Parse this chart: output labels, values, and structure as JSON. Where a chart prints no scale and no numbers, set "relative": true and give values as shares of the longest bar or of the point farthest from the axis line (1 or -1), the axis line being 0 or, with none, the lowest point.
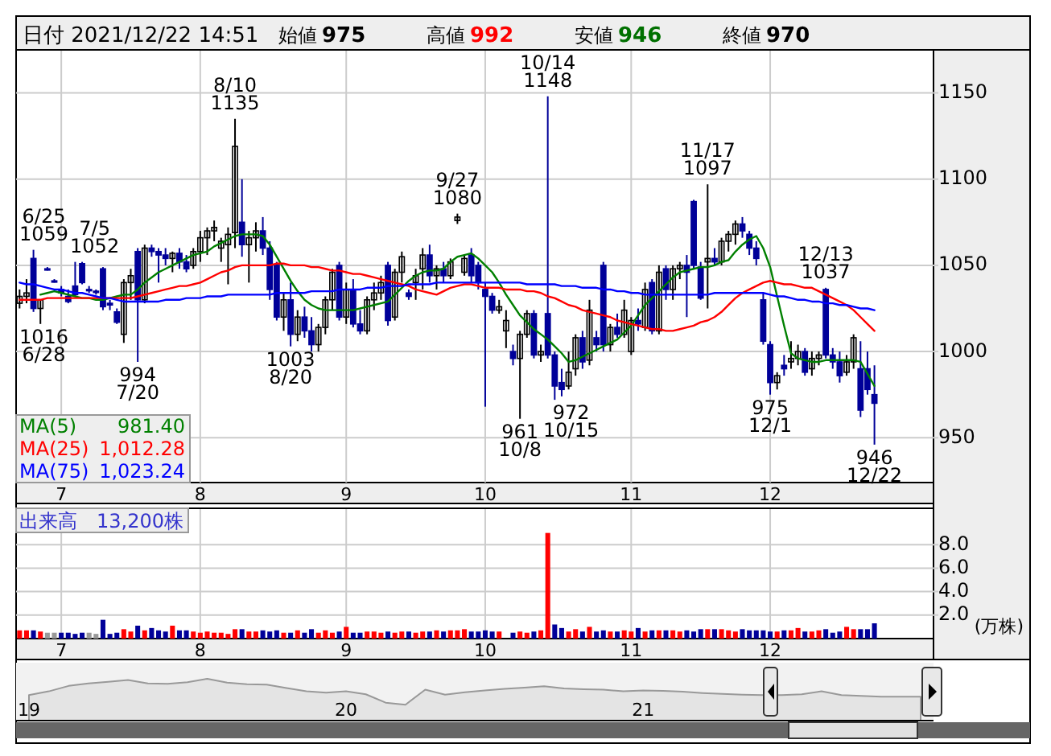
{
  "chart_data": [
    {
      "type": "candlestick",
      "title": "日付 2021/12/22 14:51",
      "categories": [
        null,
        null,
        null,
        null,
        null,
        null,
        "7",
        null,
        null,
        null,
        null,
        null,
        null,
        null,
        null,
        null,
        null,
        null,
        null,
        null,
        null,
        null,
        null,
        null,
        null,
        null,
        "8",
        null,
        null,
        null,
        null,
        null,
        null,
        null,
        null,
        null,
        null,
        null,
        null,
        null,
        null,
        null,
        null,
        null,
        null,
        null,
        null,
        "9",
        null,
        null,
        null,
        null,
        null,
        null,
        null,
        null,
        null,
        null,
        null,
        null,
        null,
        null,
        null,
        null,
        null,
        null,
        null,
        "10",
        null,
        null,
        null,
        null,
        null,
        null,
        null,
        null,
        null,
        null,
        null,
        null,
        null,
        null,
        null,
        null,
        null,
        null,
        null,
        null,
        "11",
        null,
        null,
        null,
        null,
        null,
        null,
        null,
        null,
        null,
        null,
        null,
        null,
        null,
        null,
        null,
        null,
        null,
        null,
        null,
        "12",
        null,
        null,
        null,
        null,
        null,
        null,
        null,
        null,
        null,
        null,
        null,
        null,
        null,
        null,
        null
      ],
      "ohlc": [
        [
          1028,
          1036,
          1025,
          1032
        ],
        [
          1032,
          1042,
          1028,
          1034
        ],
        [
          1054,
          1059,
          1023,
          1025
        ],
        [
          1025,
          1030,
          1016,
          1030
        ],
        [
          1048,
          1049,
          1047,
          1048
        ],
        [
          1041,
          1042,
          1040,
          1041
        ],
        [
          1036,
          1038,
          1032,
          1034
        ],
        [
          1032,
          1036,
          1028,
          1029
        ],
        [
          1038,
          1052,
          1032,
          1033
        ],
        [
          1051,
          1052,
          1039,
          1040
        ],
        [
          1036,
          1038,
          1034,
          1036
        ],
        [
          1035,
          1036,
          1033,
          1035
        ],
        [
          1048,
          1049,
          1024,
          1026
        ],
        [
          1028,
          1030,
          1024,
          1027
        ],
        [
          1023,
          1025,
          1016,
          1017
        ],
        [
          1010,
          1042,
          1005,
          1040
        ],
        [
          1040,
          1048,
          1030,
          1044
        ],
        [
          1058,
          1060,
          994,
          1030
        ],
        [
          1030,
          1062,
          1028,
          1060
        ],
        [
          1060,
          1062,
          1055,
          1058
        ],
        [
          1058,
          1060,
          1040,
          1056
        ],
        [
          1056,
          1060,
          1050,
          1054
        ],
        [
          1054,
          1058,
          1046,
          1057
        ],
        [
          1057,
          1060,
          1048,
          1052
        ],
        [
          1052,
          1056,
          1046,
          1048
        ],
        [
          1050,
          1060,
          1048,
          1058
        ],
        [
          1058,
          1070,
          1052,
          1066
        ],
        [
          1066,
          1072,
          1056,
          1070
        ],
        [
          1070,
          1076,
          1064,
          1072
        ],
        [
          1060,
          1066,
          1052,
          1064
        ],
        [
          1062,
          1072,
          1039,
          1068
        ],
        [
          1069,
          1135,
          1060,
          1119
        ],
        [
          1075,
          1100,
          1055,
          1062
        ],
        [
          1062,
          1070,
          1040,
          1066
        ],
        [
          1066,
          1075,
          1058,
          1070
        ],
        [
          1070,
          1078,
          1056,
          1060
        ],
        [
          1060,
          1064,
          1030,
          1036
        ],
        [
          1050,
          1052,
          1018,
          1020
        ],
        [
          1020,
          1034,
          1012,
          1030
        ],
        [
          1030,
          1040,
          1003,
          1010
        ],
        [
          1010,
          1024,
          1006,
          1020
        ],
        [
          1020,
          1026,
          1008,
          1012
        ],
        [
          1012,
          1020,
          1000,
          1004
        ],
        [
          1004,
          1016,
          1000,
          1014
        ],
        [
          1014,
          1032,
          1010,
          1030
        ],
        [
          1030,
          1048,
          1024,
          1046
        ],
        [
          1050,
          1052,
          1018,
          1020
        ],
        [
          1020,
          1040,
          1016,
          1036
        ],
        [
          1036,
          1042,
          1014,
          1016
        ],
        [
          1016,
          1024,
          1010,
          1012
        ],
        [
          1012,
          1032,
          1010,
          1030
        ],
        [
          1030,
          1040,
          1024,
          1034
        ],
        [
          1034,
          1044,
          1030,
          1040
        ],
        [
          1050,
          1052,
          1015,
          1018
        ],
        [
          1020,
          1048,
          1018,
          1046
        ],
        [
          1046,
          1058,
          1040,
          1055
        ],
        [
          1034,
          1036,
          1030,
          1032
        ],
        [
          1040,
          1048,
          1030,
          1044
        ],
        [
          1048,
          1060,
          1036,
          1056
        ],
        [
          1056,
          1062,
          1040,
          1044
        ],
        [
          1044,
          1050,
          1036,
          1048
        ],
        [
          1048,
          1052,
          1040,
          1044
        ],
        [
          1044,
          1054,
          1042,
          1052
        ],
        [
          1076,
          1080,
          1074,
          1078
        ],
        [
          1046,
          1056,
          1044,
          1054
        ],
        [
          1056,
          1060,
          1040,
          1044
        ],
        [
          1050,
          1052,
          1036,
          1040
        ],
        [
          1036,
          1040,
          968,
          1032
        ],
        [
          1032,
          1034,
          1022,
          1024
        ],
        [
          1024,
          1030,
          1022,
          1026
        ],
        [
          1012,
          1024,
          1002,
          1018
        ],
        [
          1000,
          1004,
          992,
          996
        ],
        [
          996,
          1012,
          961,
          1010
        ],
        [
          1010,
          1024,
          1008,
          1022
        ],
        [
          1022,
          1024,
          996,
          998
        ],
        [
          998,
          1004,
          994,
          1000
        ],
        [
          1022,
          1148,
          996,
          998
        ],
        [
          998,
          1000,
          972,
          980
        ],
        [
          982,
          990,
          974,
          978
        ],
        [
          980,
          1000,
          978,
          988
        ],
        [
          990,
          1010,
          986,
          1008
        ],
        [
          1008,
          1012,
          990,
          994
        ],
        [
          995,
          1030,
          992,
          1024
        ],
        [
          1008,
          1012,
          1000,
          1004
        ],
        [
          1050,
          1052,
          1000,
          1004
        ],
        [
          1004,
          1016,
          1000,
          1014
        ],
        [
          1014,
          1022,
          1008,
          1010
        ],
        [
          1010,
          1030,
          1008,
          1024
        ],
        [
          1000,
          1020,
          998,
          1018
        ],
        [
          1018,
          1025,
          1012,
          1016
        ],
        [
          1014,
          1040,
          1012,
          1036
        ],
        [
          1040,
          1042,
          1010,
          1012
        ],
        [
          1012,
          1050,
          1010,
          1046
        ],
        [
          1048,
          1050,
          1030,
          1036
        ],
        [
          1036,
          1050,
          1030,
          1048
        ],
        [
          1048,
          1052,
          1042,
          1050
        ],
        [
          1050,
          1056,
          1020,
          1046
        ],
        [
          1087,
          1088,
          1048,
          1050
        ],
        [
          1049,
          1052,
          1030,
          1031
        ],
        [
          1052,
          1097,
          1025,
          1054
        ],
        [
          1054,
          1060,
          1050,
          1052
        ],
        [
          1052,
          1066,
          1050,
          1064
        ],
        [
          1064,
          1070,
          1058,
          1068
        ],
        [
          1068,
          1076,
          1062,
          1074
        ],
        [
          1074,
          1078,
          1066,
          1070
        ],
        [
          1068,
          1070,
          1056,
          1060
        ],
        [
          1060,
          1064,
          1050,
          1054
        ],
        [
          1030,
          1034,
          1004,
          1006
        ],
        [
          1004,
          1006,
          975,
          982
        ],
        [
          982,
          988,
          978,
          986
        ],
        [
          992,
          998,
          986,
          990
        ],
        [
          994,
          1006,
          990,
          996
        ],
        [
          996,
          1004,
          992,
          1000
        ],
        [
          1000,
          1002,
          986,
          988
        ],
        [
          990,
          1000,
          986,
          996
        ],
        [
          996,
          1000,
          992,
          998
        ],
        [
          1036,
          1037,
          996,
          998
        ],
        [
          998,
          1002,
          990,
          994
        ],
        [
          994,
          1000,
          982,
          986
        ],
        [
          988,
          998,
          986,
          994
        ],
        [
          994,
          1010,
          990,
          1008
        ],
        [
          990,
          1006,
          962,
          966
        ],
        [
          990,
          1000,
          975,
          978
        ],
        [
          975,
          992,
          946,
          970
        ]
      ],
      "colors": [
        "#ffffff",
        "#ffffff",
        "#000099",
        "#ffffff",
        "#000099",
        "#000099",
        "#000099",
        "#000099",
        "#000099",
        "#000099",
        "#000099",
        "#000099",
        "#000099",
        "#000099",
        "#000099",
        "#ffffff",
        "#ffffff",
        "#000099",
        "#ffffff",
        "#000099",
        "#000099",
        "#000099",
        "#ffffff",
        "#000099",
        "#000099",
        "#ffffff",
        "#ffffff",
        "#ffffff",
        "#ffffff",
        "#ffffff",
        "#ffffff",
        "#ffffff",
        "#000099",
        "#ffffff",
        "#ffffff",
        "#000099",
        "#000099",
        "#000099",
        "#ffffff",
        "#000099",
        "#ffffff",
        "#000099",
        "#000099",
        "#ffffff",
        "#ffffff",
        "#ffffff",
        "#000099",
        "#ffffff",
        "#000099",
        "#000099",
        "#ffffff",
        "#ffffff",
        "#ffffff",
        "#000099",
        "#ffffff",
        "#ffffff",
        "#000099",
        "#ffffff",
        "#ffffff",
        "#000099",
        "#ffffff",
        "#000099",
        "#ffffff",
        "#ffffff",
        "#ffffff",
        "#000099",
        "#000099",
        "#000099",
        "#000099",
        "#ffffff",
        "#ffffff",
        "#000099",
        "#ffffff",
        "#ffffff",
        "#000099",
        "#ffffff",
        "#000099",
        "#000099",
        "#000099",
        "#ffffff",
        "#ffffff",
        "#000099",
        "#ffffff",
        "#000099",
        "#000099",
        "#ffffff",
        "#000099",
        "#ffffff",
        "#ffffff",
        "#000099",
        "#ffffff",
        "#000099",
        "#ffffff",
        "#000099",
        "#ffffff",
        "#ffffff",
        "#000099",
        "#000099",
        "#000099",
        "#ffffff",
        "#000099",
        "#ffffff",
        "#ffffff",
        "#ffffff",
        "#000099",
        "#000099",
        "#000099",
        "#000099",
        "#000099",
        "#ffffff",
        "#000099",
        "#ffffff",
        "#ffffff",
        "#000099",
        "#ffffff",
        "#ffffff",
        "#000099",
        "#000099",
        "#000099",
        "#ffffff",
        "#ffffff",
        "#000099",
        "#000099",
        "#000099"
      ],
      "series": [
        {
          "name": "MA(5)",
          "type": "line",
          "color": "#008000",
          "values": [
            null,
            null,
            null,
            1033,
            1034,
            1035,
            1034,
            1033,
            1032,
            1031,
            1031,
            1030,
            1030,
            1031,
            1032,
            1033,
            1033,
            1036,
            1040,
            1043,
            1046,
            1048,
            1050,
            1052,
            1054,
            1056,
            1057,
            1058,
            1061,
            1063,
            1065,
            1067,
            1068,
            1068,
            1068,
            1067,
            1062,
            1055,
            1048,
            1041,
            1035,
            1030,
            1027,
            1025,
            1024,
            1024,
            1024,
            1024,
            1024,
            1025,
            1026,
            1027,
            1028,
            1029,
            1033,
            1037,
            1041,
            1044,
            1046,
            1047,
            1047,
            1048,
            1052,
            1055,
            1056,
            1057,
            1054,
            1050,
            1046,
            1040,
            1033,
            1027,
            1021,
            1017,
            1013,
            1010,
            1007,
            1003,
            999,
            994,
            995,
            997,
            999,
            1001,
            1003,
            1005,
            1007,
            1011,
            1015,
            1021,
            1027,
            1031,
            1035,
            1039,
            1043,
            1046,
            1047,
            1048,
            1049,
            1049,
            1050,
            1052,
            1053,
            1058,
            1062,
            1065,
            1067,
            1060,
            1049,
            1032,
            1015,
            999,
            996,
            995,
            994,
            994,
            995,
            995,
            995,
            995,
            995,
            994,
            987,
            980
          ]
        },
        {
          "name": "MA(25)",
          "type": "line",
          "color": "#ff0000",
          "values": [
            1030,
            1030,
            1030,
            1030,
            1031,
            1031,
            1031,
            1031,
            1031,
            1031,
            1031,
            1031,
            1031,
            1031,
            1031,
            1031,
            1031,
            1032,
            1033,
            1034,
            1035,
            1036,
            1037,
            1038,
            1038,
            1039,
            1040,
            1042,
            1044,
            1046,
            1047,
            1049,
            1050,
            1050,
            1050,
            1050,
            1050,
            1051,
            1051,
            1050,
            1050,
            1050,
            1049,
            1049,
            1048,
            1047,
            1047,
            1046,
            1045,
            1045,
            1044,
            1043,
            1042,
            1041,
            1040,
            1039,
            1038,
            1036,
            1035,
            1034,
            1033,
            1035,
            1037,
            1038,
            1039,
            1039,
            1038,
            1037,
            1037,
            1037,
            1036,
            1036,
            1036,
            1035,
            1035,
            1034,
            1032,
            1031,
            1029,
            1027,
            1026,
            1024,
            1023,
            1022,
            1021,
            1020,
            1018,
            1017,
            1016,
            1015,
            1014,
            1013,
            1013,
            1012,
            1012,
            1013,
            1014,
            1015,
            1017,
            1018,
            1020,
            1023,
            1027,
            1031,
            1034,
            1036,
            1038,
            1040,
            1041,
            1040,
            1039,
            1039,
            1038,
            1037,
            1037,
            1035,
            1033,
            1031,
            1029,
            1027,
            1024,
            1020,
            1016,
            1012
          ]
        },
        {
          "name": "MA(75)",
          "type": "line",
          "color": "#0000ff",
          "values": [
            1040,
            1039,
            1039,
            1038,
            1037,
            1036,
            1036,
            1035,
            1034,
            1034,
            1033,
            1032,
            1031,
            1031,
            1030,
            1029,
            1029,
            1029,
            1029,
            1029,
            1029,
            1030,
            1030,
            1030,
            1031,
            1031,
            1031,
            1032,
            1032,
            1032,
            1033,
            1033,
            1033,
            1033,
            1033,
            1033,
            1033,
            1034,
            1034,
            1034,
            1034,
            1034,
            1035,
            1035,
            1035,
            1035,
            1036,
            1036,
            1036,
            1036,
            1037,
            1037,
            1037,
            1038,
            1038,
            1038,
            1039,
            1039,
            1039,
            1039,
            1040,
            1040,
            1040,
            1040,
            1040,
            1040,
            1040,
            1040,
            1040,
            1040,
            1040,
            1040,
            1040,
            1039,
            1039,
            1039,
            1039,
            1039,
            1038,
            1038,
            1038,
            1037,
            1037,
            1037,
            1036,
            1036,
            1035,
            1035,
            1034,
            1034,
            1033,
            1033,
            1033,
            1033,
            1033,
            1033,
            1033,
            1033,
            1033,
            1033,
            1034,
            1034,
            1034,
            1034,
            1034,
            1034,
            1034,
            1034,
            1033,
            1032,
            1032,
            1031,
            1030,
            1030,
            1029,
            1029,
            1028,
            1028,
            1027,
            1027,
            1026,
            1025,
            1025,
            1024
          ]
        }
      ],
      "ylim": [
        924,
        1175
      ],
      "yticks": [
        950,
        1000,
        1050,
        1100,
        1150
      ],
      "grid": true,
      "legend": "bottom left",
      "annotations": [
        "始値",
        "975",
        "高値",
        "992",
        "安値",
        "946",
        "終値",
        "970",
        "981.40",
        "1,012.28",
        "1,023.24"
      ],
      "value_labels": [
        null,
        null,
        "6/25 1059",
        "1016 6/28",
        null,
        null,
        null,
        null,
        "7/5 1052",
        null,
        null,
        null,
        null,
        null,
        null,
        null,
        null,
        "994 7/20",
        null,
        null,
        null,
        null,
        null,
        null,
        null,
        null,
        null,
        null,
        null,
        null,
        null,
        "8/10 1135",
        null,
        null,
        null,
        null,
        null,
        null,
        null,
        "1003 8/20",
        null,
        null,
        null,
        null,
        null,
        null,
        null,
        null,
        null,
        null,
        null,
        null,
        null,
        null,
        null,
        null,
        null,
        null,
        null,
        null,
        null,
        null,
        null,
        "9/27 1080",
        null,
        null,
        null,
        null,
        null,
        null,
        null,
        null,
        "961 10/8",
        null,
        null,
        null,
        "10/14 1148",
        "972 10/15",
        null,
        null,
        null,
        null,
        null,
        null,
        null,
        null,
        null,
        null,
        null,
        null,
        null,
        null,
        null,
        null,
        null,
        null,
        null,
        null,
        null,
        "11/17 1097",
        null,
        null,
        null,
        null,
        null,
        null,
        null,
        null,
        "975 12/1",
        null,
        null,
        null,
        null,
        null,
        null,
        null,
        "12/13 1037",
        null,
        null,
        null,
        null,
        null,
        null,
        "946 12/22"
      ]
    },
    {
      "type": "bar",
      "title": "出来高　13,200株",
      "ylabel": "(万株)",
      "categories": [
        null,
        null,
        null,
        null,
        null,
        null,
        "7",
        null,
        null,
        null,
        null,
        null,
        null,
        null,
        null,
        null,
        null,
        null,
        null,
        null,
        null,
        null,
        null,
        null,
        null,
        null,
        "8",
        null,
        null,
        null,
        null,
        null,
        null,
        null,
        null,
        null,
        null,
        null,
        null,
        null,
        null,
        null,
        null,
        null,
        null,
        null,
        null,
        "9",
        null,
        null,
        null,
        null,
        null,
        null,
        null,
        null,
        null,
        null,
        null,
        null,
        null,
        null,
        null,
        null,
        null,
        null,
        null,
        "10",
        null,
        null,
        null,
        null,
        null,
        null,
        null,
        null,
        null,
        null,
        null,
        null,
        null,
        null,
        null,
        null,
        null,
        null,
        null,
        null,
        "11",
        null,
        null,
        null,
        null,
        null,
        null,
        null,
        null,
        null,
        null,
        null,
        null,
        null,
        null,
        null,
        null,
        null,
        null,
        null,
        "12",
        null,
        null,
        null,
        null,
        null,
        null,
        null,
        null,
        null,
        null,
        null,
        null,
        null,
        null,
        null
      ],
      "values": [
        0.7,
        0.7,
        0.7,
        0.6,
        0.5,
        0.5,
        0.5,
        0.5,
        0.4,
        0.5,
        0.5,
        0.4,
        1.6,
        0.4,
        0.5,
        0.8,
        0.6,
        1.1,
        0.7,
        0.9,
        0.7,
        0.6,
        1.1,
        0.7,
        0.7,
        0.6,
        0.5,
        0.6,
        0.5,
        0.5,
        0.4,
        0.8,
        0.8,
        0.6,
        0.6,
        0.7,
        0.6,
        0.7,
        0.5,
        0.5,
        0.7,
        0.5,
        0.8,
        0.5,
        0.7,
        0.5,
        0.6,
        1.0,
        0.5,
        0.5,
        0.6,
        0.6,
        0.5,
        0.6,
        0.5,
        0.6,
        0.6,
        0.5,
        0.6,
        0.6,
        0.7,
        0.6,
        0.7,
        0.7,
        0.8,
        0.6,
        0.6,
        0.7,
        0.6,
        0.6,
        null,
        0.5,
        0.6,
        0.5,
        0.6,
        0.7,
        9.0,
        1.2,
        0.9,
        0.6,
        0.8,
        0.6,
        1.0,
        0.6,
        0.7,
        0.6,
        0.6,
        0.7,
        0.6,
        0.9,
        0.6,
        0.7,
        0.7,
        0.7,
        0.7,
        0.6,
        0.7,
        0.6,
        0.8,
        0.8,
        0.8,
        0.8,
        0.7,
        0.6,
        0.8,
        0.7,
        0.7,
        0.7,
        0.6,
        0.6,
        0.7,
        0.7,
        0.9,
        0.6,
        0.6,
        0.7,
        0.8,
        0.5,
        0.6,
        1.0,
        0.8,
        0.8,
        0.8,
        1.3
      ],
      "colors": [
        "#ff0000",
        "#ff0000",
        "#000099",
        "#ff0000",
        "#999999",
        "#999999",
        "#000099",
        "#000099",
        "#000099",
        "#000099",
        "#999999",
        "#999999",
        "#000099",
        "#000099",
        "#000099",
        "#ff0000",
        "#ff0000",
        "#000099",
        "#ff0000",
        "#000099",
        "#000099",
        "#000099",
        "#ff0000",
        "#000099",
        "#000099",
        "#ff0000",
        "#ff0000",
        "#ff0000",
        "#ff0000",
        "#ff0000",
        "#ff0000",
        "#ff0000",
        "#000099",
        "#ff0000",
        "#ff0000",
        "#000099",
        "#000099",
        "#000099",
        "#ff0000",
        "#000099",
        "#ff0000",
        "#000099",
        "#000099",
        "#ff0000",
        "#ff0000",
        "#ff0000",
        "#000099",
        "#ff0000",
        "#000099",
        "#000099",
        "#ff0000",
        "#ff0000",
        "#ff0000",
        "#000099",
        "#ff0000",
        "#ff0000",
        "#000099",
        "#ff0000",
        "#ff0000",
        "#000099",
        "#ff0000",
        "#000099",
        "#ff0000",
        "#ff0000",
        "#ff0000",
        "#000099",
        "#000099",
        "#000099",
        "#000099",
        "#ff0000",
        "#ff0000",
        "#000099",
        "#ff0000",
        "#ff0000",
        "#000099",
        "#ff0000",
        "#ff0000",
        "#000099",
        "#000099",
        "#ff0000",
        "#ff0000",
        "#000099",
        "#ff0000",
        "#000099",
        "#000099",
        "#ff0000",
        "#000099",
        "#ff0000",
        "#ff0000",
        "#000099",
        "#ff0000",
        "#000099",
        "#ff0000",
        "#000099",
        "#ff0000",
        "#ff0000",
        "#000099",
        "#000099",
        "#000099",
        "#ff0000",
        "#000099",
        "#ff0000",
        "#ff0000",
        "#ff0000",
        "#000099",
        "#000099",
        "#000099",
        "#000099",
        "#000099",
        "#ff0000",
        "#000099",
        "#ff0000",
        "#ff0000",
        "#000099",
        "#ff0000",
        "#ff0000",
        "#000099",
        "#000099",
        "#000099",
        "#ff0000",
        "#ff0000",
        "#000099",
        "#000099",
        "#000099"
      ],
      "ylim": [
        0,
        11.1
      ],
      "yticks": [
        {
          "value": 2,
          "label": "2.0"
        },
        {
          "value": 4,
          "label": "4.0"
        },
        {
          "value": 6,
          "label": "6.0"
        },
        {
          "value": 8,
          "label": "8.0"
        }
      ],
      "grid": true
    },
    {
      "type": "area",
      "relative": true,
      "color": "#999999",
      "categories": [
        "19",
        null,
        null,
        null,
        null,
        null,
        null,
        null,
        null,
        null,
        null,
        null,
        null,
        null,
        null,
        null,
        "20",
        null,
        null,
        null,
        null,
        null,
        null,
        null,
        null,
        null,
        null,
        null,
        null,
        null,
        null,
        "21",
        null,
        null,
        null,
        null,
        null,
        null,
        null,
        null,
        null,
        null,
        null,
        null,
        null,
        null
      ],
      "values": [
        0.61,
        0.7,
        0.83,
        0.89,
        0.93,
        0.97,
        0.89,
        0.88,
        0.92,
        1.0,
        0.91,
        0.87,
        0.86,
        0.78,
        0.7,
        0.67,
        0.7,
        0.63,
        0.43,
        0.38,
        0.74,
        0.62,
        0.68,
        0.72,
        0.76,
        0.79,
        0.82,
        0.77,
        0.75,
        0.74,
        0.7,
        0.72,
        0.71,
        0.69,
        0.66,
        0.64,
        0.62,
        0.61,
        0.61,
        0.63,
        0.7,
        0.61,
        0.59,
        0.57,
        0.57,
        0.57
      ]
    }
  ]
}
